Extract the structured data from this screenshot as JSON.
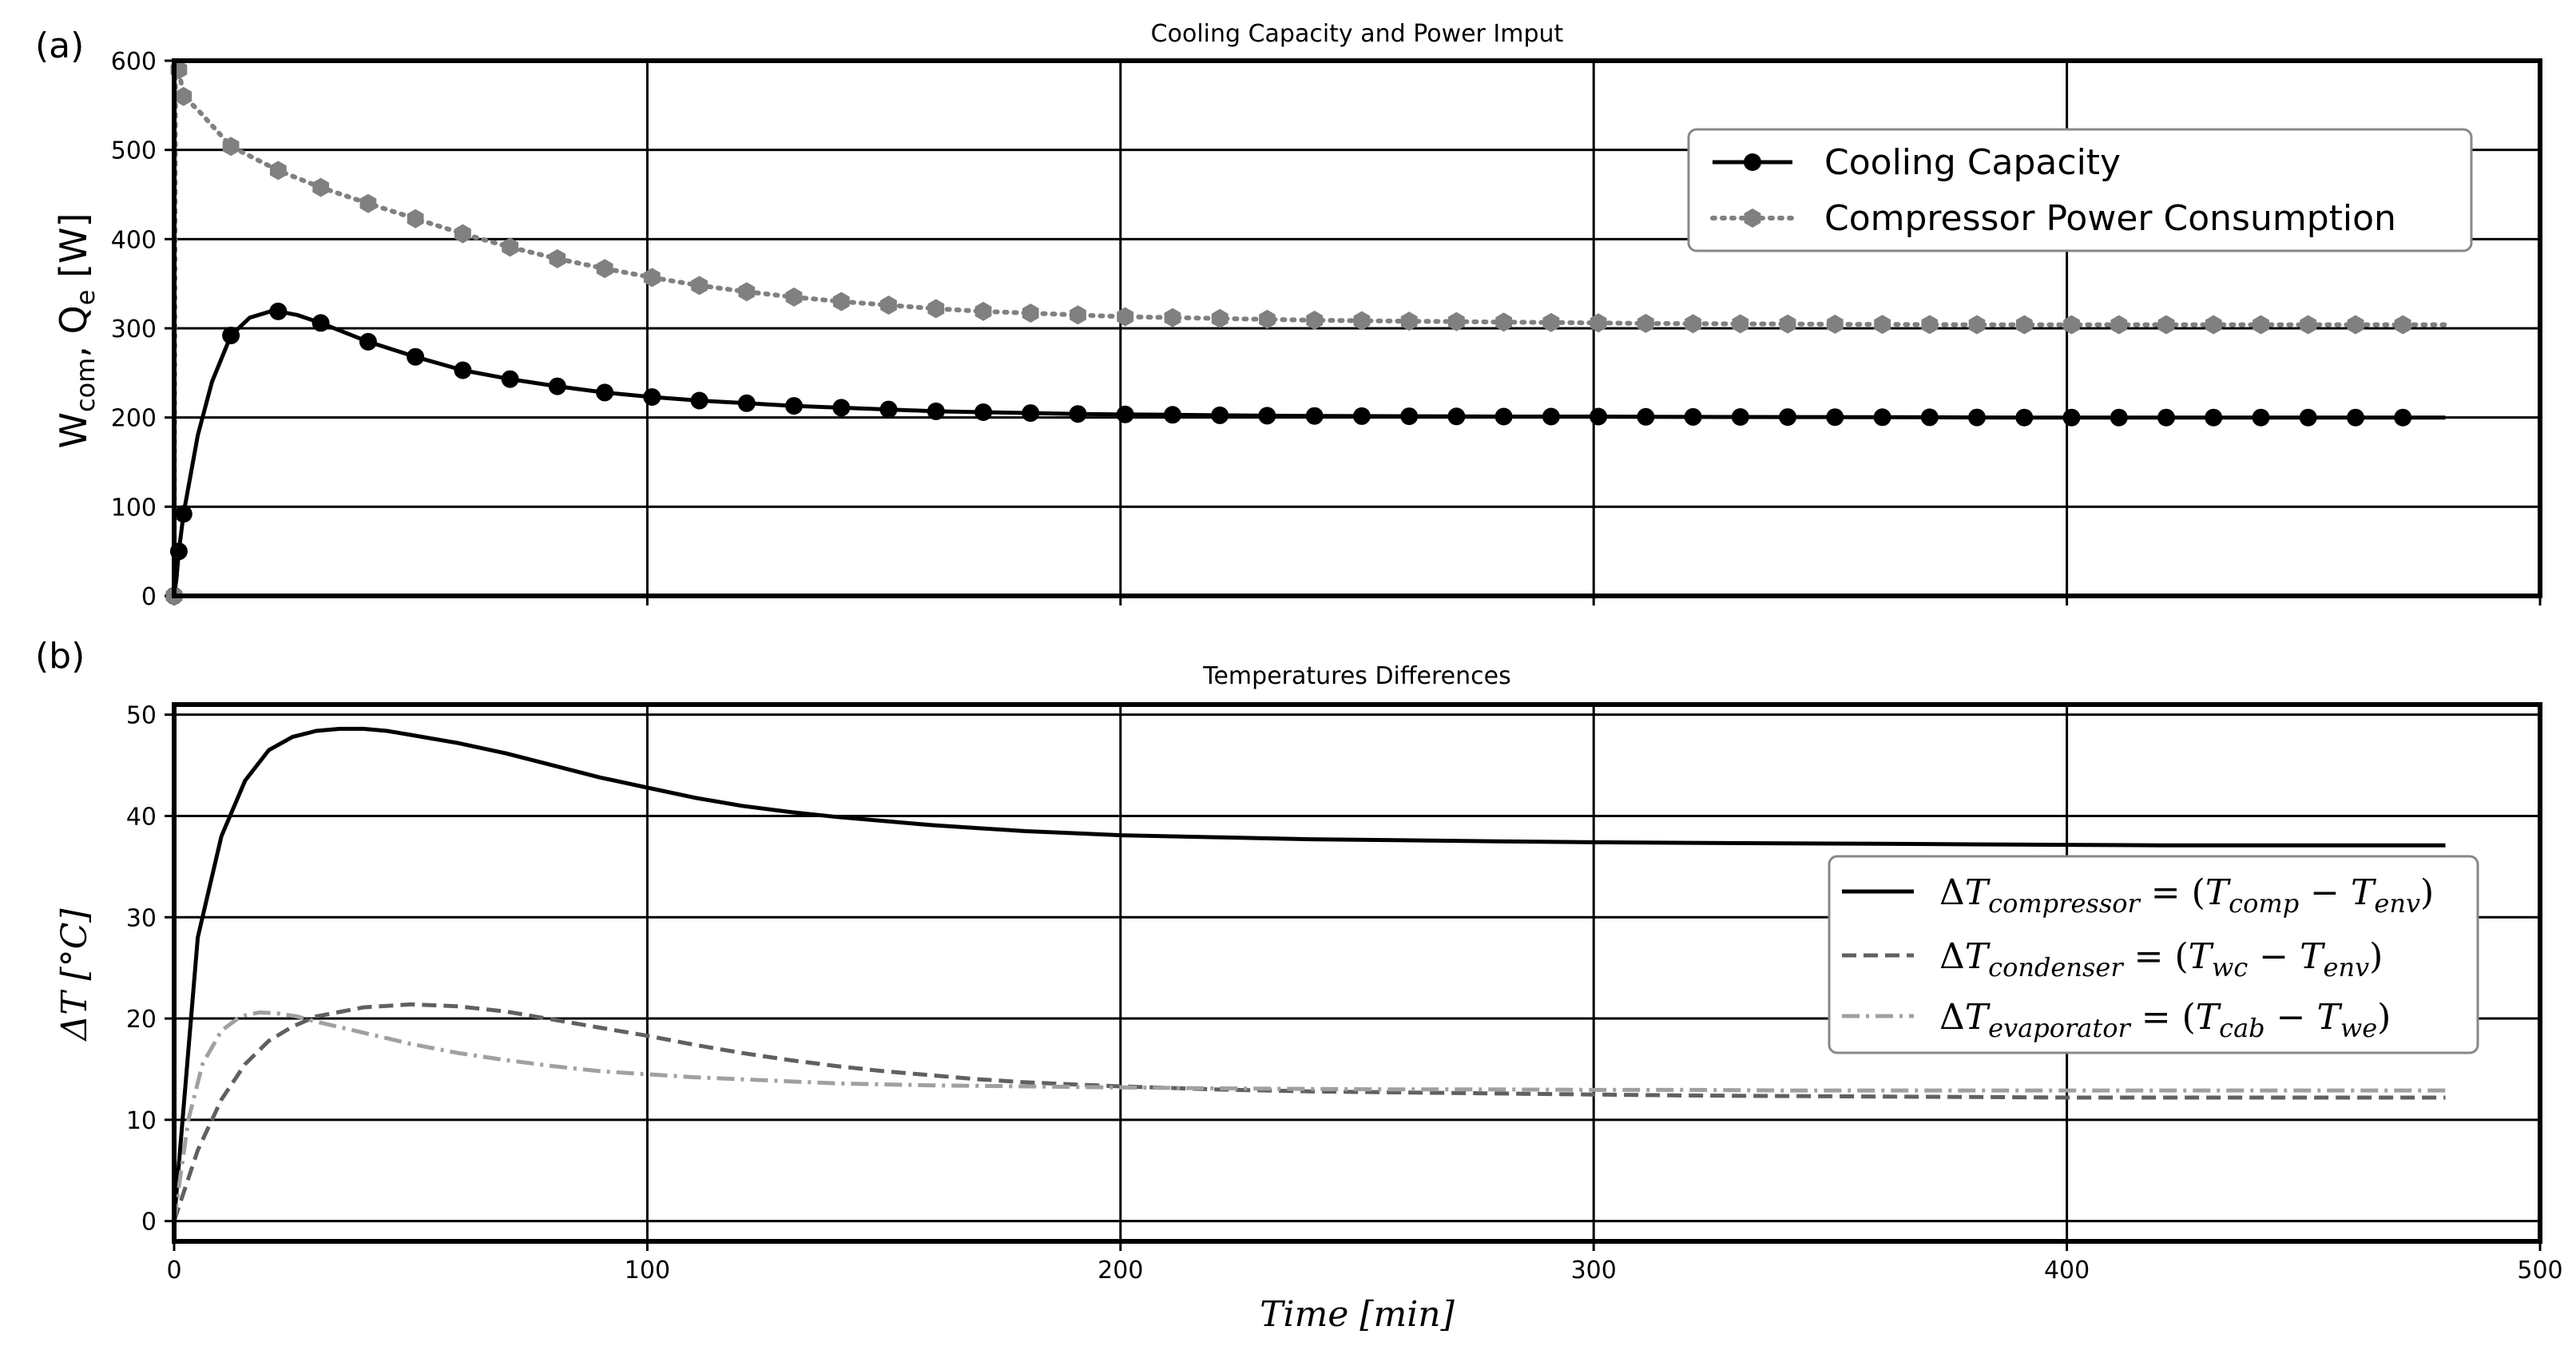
{
  "chart_data": [
    {
      "panel": "(a)",
      "type": "line",
      "title": "Cooling Capacity and Power Imput",
      "xlabel": "",
      "ylabel_html": "Ẇcom, Q̇e [W]",
      "ylabel": {
        "main": "W",
        "sub1": "com",
        "sep": ", Q",
        "sub2": "e",
        "unit": " [W]"
      },
      "xlim": [
        0,
        500
      ],
      "ylim": [
        0,
        600
      ],
      "xticks": [
        "0",
        "100",
        "200",
        "300",
        "400",
        "500"
      ],
      "yticks": [
        "0",
        "100",
        "200",
        "300",
        "400",
        "500",
        "600"
      ],
      "grid": true,
      "legend_position": "top-right",
      "series": [
        {
          "name": "Cooling Capacity",
          "color": "#000000",
          "line": "solid",
          "marker": "circle",
          "x": [
            0,
            0.5,
            1,
            2,
            5,
            8,
            12,
            16,
            21,
            26,
            31,
            41,
            51,
            61,
            71,
            81,
            91,
            101,
            111,
            121,
            131,
            141,
            151,
            161,
            171,
            181,
            191,
            201,
            211,
            221,
            231,
            241,
            251,
            261,
            271,
            281,
            291,
            301,
            311,
            321,
            331,
            341,
            351,
            361,
            371,
            381,
            391,
            401,
            411,
            421,
            431,
            441,
            451,
            461,
            471,
            480
          ],
          "y": [
            0,
            20,
            50,
            92,
            180,
            240,
            292,
            312,
            320,
            315,
            306,
            285,
            268,
            253,
            243,
            235,
            228,
            223,
            219,
            216,
            213,
            211,
            209,
            207,
            206,
            205,
            204,
            203.5,
            203,
            202.5,
            202,
            201.8,
            201.6,
            201.4,
            201.2,
            201,
            201,
            201,
            200.8,
            200.7,
            200.6,
            200.5,
            200.4,
            200.3,
            200.2,
            200.1,
            200,
            200,
            200,
            200,
            200,
            200,
            200,
            200,
            200,
            200
          ],
          "markers_x": [
            0,
            1,
            2,
            12,
            22,
            31,
            41,
            51,
            61,
            71,
            81,
            91,
            101,
            111,
            121,
            131,
            141,
            151,
            161,
            171,
            181,
            191,
            201,
            211,
            221,
            231,
            241,
            251,
            261,
            271,
            281,
            291,
            301,
            311,
            321,
            331,
            341,
            351,
            361,
            371,
            381,
            391,
            401,
            411,
            421,
            431,
            441,
            451,
            461,
            471
          ]
        },
        {
          "name": "Compressor Power Consumption",
          "color": "#808080",
          "line": "dotted",
          "marker": "hexagon",
          "x": [
            0,
            0.3,
            1,
            2,
            5,
            12,
            22,
            31,
            41,
            51,
            61,
            71,
            81,
            91,
            101,
            111,
            121,
            131,
            141,
            151,
            161,
            171,
            181,
            191,
            201,
            211,
            221,
            231,
            241,
            251,
            261,
            271,
            281,
            291,
            301,
            311,
            321,
            331,
            341,
            351,
            361,
            371,
            381,
            391,
            401,
            411,
            421,
            431,
            441,
            451,
            461,
            471,
            480
          ],
          "y": [
            0,
            600,
            590,
            560,
            545,
            504,
            477,
            458,
            440,
            423,
            406,
            391,
            378,
            367,
            357,
            348,
            341,
            335,
            330,
            326,
            322,
            319,
            317,
            315,
            313,
            312,
            311,
            310,
            309,
            308.5,
            308,
            307.5,
            307,
            306.5,
            306,
            305.5,
            305.2,
            305,
            304.8,
            304.6,
            304.4,
            304.2,
            304,
            304,
            304,
            304,
            304,
            304,
            304,
            304,
            304,
            304,
            304
          ],
          "markers_x": [
            0,
            1,
            2,
            12,
            22,
            31,
            41,
            51,
            61,
            71,
            81,
            91,
            101,
            111,
            121,
            131,
            141,
            151,
            161,
            171,
            181,
            191,
            201,
            211,
            221,
            231,
            241,
            251,
            261,
            271,
            281,
            291,
            301,
            311,
            321,
            331,
            341,
            351,
            361,
            371,
            381,
            391,
            401,
            411,
            421,
            431,
            441,
            451,
            461,
            471
          ]
        }
      ]
    },
    {
      "panel": "(b)",
      "type": "line",
      "title": "Temperatures Differences",
      "xlabel": "Time [min]",
      "ylabel": "ΔT [°C]",
      "xlim": [
        0,
        500
      ],
      "ylim": [
        -2,
        51
      ],
      "xticks": [
        "0",
        "100",
        "200",
        "300",
        "400",
        "500"
      ],
      "yticks": [
        "0",
        "10",
        "20",
        "30",
        "40",
        "50"
      ],
      "grid": true,
      "legend_position": "center-right",
      "series": [
        {
          "name": "ΔTcompressor = (Tcomp − Tenv)",
          "legend": {
            "sub": "compressor",
            "a": "comp",
            "b": "env"
          },
          "color": "#000000",
          "line": "solid",
          "x": [
            0,
            5,
            10,
            15,
            20,
            25,
            30,
            35,
            40,
            45,
            50,
            60,
            70,
            80,
            90,
            100,
            110,
            120,
            130,
            140,
            150,
            160,
            170,
            180,
            190,
            200,
            220,
            240,
            260,
            280,
            300,
            320,
            340,
            360,
            380,
            400,
            420,
            440,
            460,
            480
          ],
          "y": [
            0,
            28,
            38,
            43.5,
            46.5,
            47.8,
            48.4,
            48.6,
            48.6,
            48.4,
            48.0,
            47.2,
            46.2,
            45.0,
            43.8,
            42.8,
            41.8,
            41.0,
            40.4,
            39.9,
            39.5,
            39.1,
            38.8,
            38.5,
            38.3,
            38.1,
            37.9,
            37.7,
            37.6,
            37.5,
            37.4,
            37.35,
            37.3,
            37.25,
            37.2,
            37.15,
            37.1,
            37.1,
            37.1,
            37.1
          ]
        },
        {
          "name": "ΔTcondenser = (Twc − Tenv)",
          "legend": {
            "sub": "condenser",
            "a": "wc",
            "b": "env"
          },
          "color": "#606060",
          "line": "dashed",
          "x": [
            0,
            5,
            10,
            15,
            20,
            25,
            30,
            40,
            50,
            60,
            70,
            80,
            90,
            100,
            110,
            120,
            130,
            140,
            150,
            160,
            170,
            180,
            190,
            200,
            220,
            240,
            260,
            280,
            300,
            320,
            340,
            360,
            380,
            400,
            420,
            440,
            460,
            480
          ],
          "y": [
            0,
            7,
            12,
            15.5,
            17.8,
            19.2,
            20.2,
            21.1,
            21.4,
            21.2,
            20.7,
            19.9,
            19.1,
            18.3,
            17.4,
            16.6,
            15.9,
            15.3,
            14.8,
            14.4,
            14.0,
            13.7,
            13.5,
            13.3,
            13.0,
            12.8,
            12.7,
            12.6,
            12.5,
            12.4,
            12.35,
            12.3,
            12.25,
            12.2,
            12.2,
            12.2,
            12.2,
            12.2
          ]
        },
        {
          "name": "ΔTevaporator = (Tcab − Twe)",
          "legend": {
            "sub": "evaporator",
            "a": "cab",
            "b": "we"
          },
          "color": "#a0a0a0",
          "line": "dashdot",
          "x": [
            0,
            3,
            6,
            10,
            14,
            18,
            22,
            26,
            30,
            40,
            50,
            60,
            70,
            80,
            90,
            100,
            110,
            120,
            130,
            140,
            150,
            160,
            180,
            200,
            220,
            240,
            260,
            280,
            300,
            320,
            340,
            360,
            380,
            400,
            420,
            440,
            460,
            480
          ],
          "y": [
            0,
            10,
            15.5,
            18.8,
            20.2,
            20.6,
            20.5,
            20.2,
            19.7,
            18.6,
            17.5,
            16.6,
            15.9,
            15.3,
            14.8,
            14.5,
            14.2,
            14.0,
            13.8,
            13.6,
            13.5,
            13.4,
            13.3,
            13.2,
            13.1,
            13.05,
            13.0,
            13.0,
            12.95,
            12.95,
            12.9,
            12.9,
            12.9,
            12.9,
            12.9,
            12.9,
            12.9,
            12.9
          ]
        }
      ]
    }
  ]
}
